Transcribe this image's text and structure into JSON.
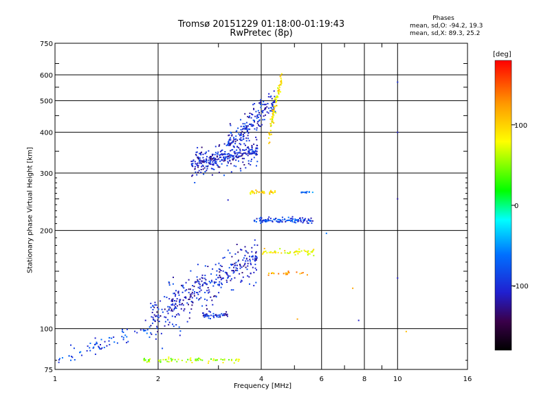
{
  "chart_data": {
    "type": "scatter",
    "title": "Tromsø 20151229 01:18:00-01:19:43",
    "subtitle": "RwPretec (8p)",
    "xlabel": "Frequency [MHz]",
    "ylabel": "Stationary phase Virtual Height [km]",
    "x_scale": "log",
    "y_scale": "log",
    "xlim": [
      1,
      16
    ],
    "ylim": [
      75,
      750
    ],
    "x_ticks": [
      1,
      2,
      4,
      6,
      8,
      10,
      16
    ],
    "x_tick_labels": [
      "1",
      "2",
      "4",
      "6",
      "8",
      "10",
      "16"
    ],
    "x_minor_ticks": [
      3,
      5,
      7,
      9
    ],
    "y_ticks": [
      75,
      100,
      200,
      300,
      400,
      500,
      600,
      750
    ],
    "y_tick_labels": [
      "75",
      "100",
      "200",
      "300",
      "400",
      "500",
      "600",
      "750"
    ],
    "grid": true,
    "colorbar": {
      "label": "[deg]",
      "range": [
        -180,
        180
      ],
      "ticks": [
        100,
        0,
        -100
      ],
      "tick_labels": [
        "100",
        "0",
        "-100"
      ]
    },
    "phase_stats": {
      "title": "Phases",
      "o_mode": "mean, sd,O: -94.2, 19.3",
      "x_mode": "mean, sd,X: 89.3, 25.2"
    },
    "traces": [
      {
        "name": "",
        "kind": "band",
        "f_start": 2.5,
        "f_end": 3.9,
        "h_start": 320,
        "h_end": 350,
        "h_spread": 45,
        "phase": -105,
        "count": 320
      },
      {
        "name": "",
        "kind": "band",
        "f_start": 3.2,
        "f_end": 4.4,
        "h_start": 360,
        "h_end": 500,
        "h_spread": 60,
        "phase": -100,
        "count": 200
      },
      {
        "name": "",
        "kind": "band",
        "f_start": 4.2,
        "f_end": 4.6,
        "h_start": 380,
        "h_end": 590,
        "h_spread": 40,
        "phase": 90,
        "count": 90
      },
      {
        "name": "",
        "kind": "band",
        "f_start": 3.8,
        "f_end": 5.7,
        "h_start": 215,
        "h_end": 215,
        "h_spread": 6,
        "phase": -90,
        "count": 110
      },
      {
        "name": "",
        "kind": "band",
        "f_start": 3.7,
        "f_end": 4.4,
        "h_start": 262,
        "h_end": 262,
        "h_spread": 6,
        "phase": 95,
        "count": 30
      },
      {
        "name": "",
        "kind": "band",
        "f_start": 5.2,
        "f_end": 5.7,
        "h_start": 262,
        "h_end": 262,
        "h_spread": 4,
        "phase": -60,
        "count": 15
      },
      {
        "name": "",
        "kind": "band",
        "f_start": 4.0,
        "f_end": 5.8,
        "h_start": 172,
        "h_end": 172,
        "h_spread": 5,
        "phase": 85,
        "count": 55
      },
      {
        "name": "",
        "kind": "band",
        "f_start": 1.9,
        "f_end": 3.9,
        "h_start": 105,
        "h_end": 165,
        "h_spread": 30,
        "phase": -105,
        "count": 380
      },
      {
        "name": "",
        "kind": "band",
        "f_start": 2.7,
        "f_end": 3.2,
        "h_start": 110,
        "h_end": 110,
        "h_spread": 4,
        "phase": -100,
        "count": 50
      },
      {
        "name": "",
        "kind": "band",
        "f_start": 1.02,
        "f_end": 1.9,
        "h_start": 80,
        "h_end": 100,
        "h_spread": 8,
        "phase": -85,
        "count": 70
      },
      {
        "name": "",
        "kind": "band",
        "f_start": 1.8,
        "f_end": 3.5,
        "h_start": 80,
        "h_end": 80,
        "h_spread": 2,
        "phase": 60,
        "count": 70
      },
      {
        "name": "",
        "kind": "band",
        "f_start": 4.2,
        "f_end": 5.5,
        "h_start": 148,
        "h_end": 148,
        "h_spread": 3,
        "phase": 120,
        "count": 20
      }
    ],
    "isolated_points": [
      {
        "f": 10.0,
        "h": 570,
        "phase": -100
      },
      {
        "f": 10.0,
        "h": 400,
        "phase": -110
      },
      {
        "f": 10.0,
        "h": 250,
        "phase": -120
      },
      {
        "f": 10.0,
        "h": 143,
        "phase": -110
      },
      {
        "f": 7.4,
        "h": 133,
        "phase": 120
      },
      {
        "f": 7.7,
        "h": 106,
        "phase": -110
      },
      {
        "f": 10.6,
        "h": 98,
        "phase": 110
      },
      {
        "f": 3.2,
        "h": 248,
        "phase": -110
      },
      {
        "f": 6.2,
        "h": 196,
        "phase": -60
      },
      {
        "f": 5.1,
        "h": 107,
        "phase": 120
      }
    ]
  }
}
